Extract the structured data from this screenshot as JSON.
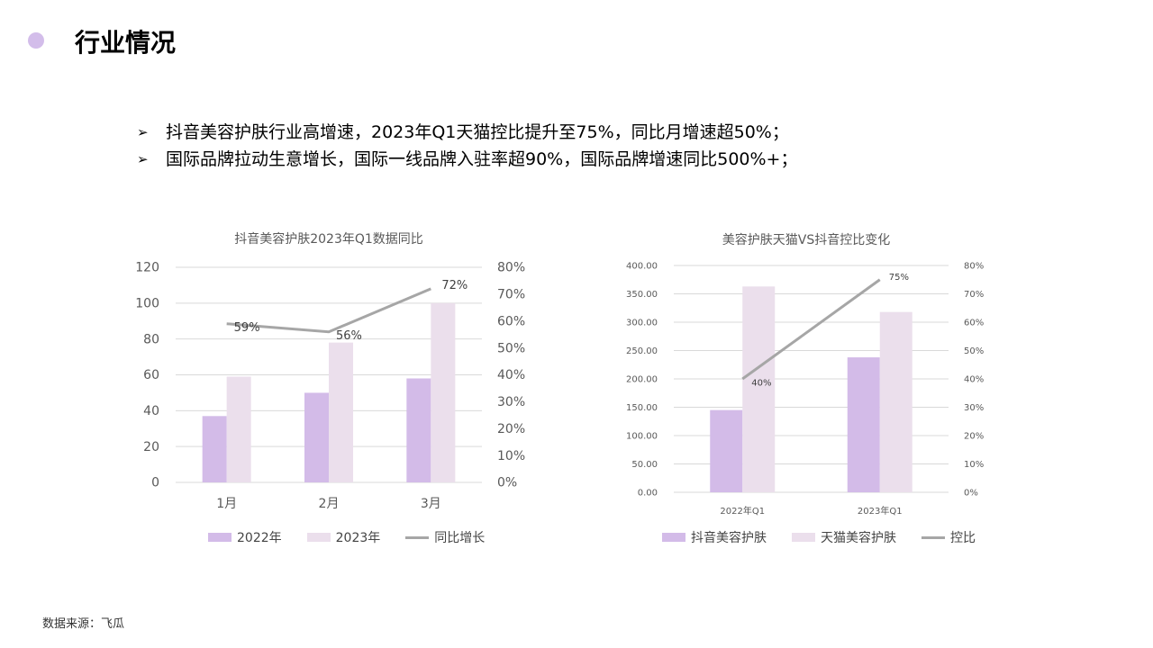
{
  "header": {
    "title": "行业情况"
  },
  "bullets": [
    "抖音美容护肤行业高增速，2023年Q1天猫控比提升至75%，同比月增速超50%；",
    "国际品牌拉动生意增长，国际一线品牌入驻率超90%，国际品牌增速同比500%+；"
  ],
  "bullet_marker": "➢",
  "source": "数据来源：飞瓜",
  "colors": {
    "bar1": "#d3bbe8",
    "bar2": "#ebdfec",
    "line": "#a6a6a6",
    "accent": "#d3bdea"
  },
  "chart_data": [
    {
      "type": "bar",
      "title": "抖音美容护肤2023年Q1数据同比",
      "categories": [
        "1月",
        "2月",
        "3月"
      ],
      "series": [
        {
          "name": "2022年",
          "values": [
            37,
            50,
            58
          ]
        },
        {
          "name": "2023年",
          "values": [
            59,
            78,
            100
          ]
        }
      ],
      "line": {
        "name": "同比增长",
        "values": [
          59,
          56,
          72
        ],
        "labels": [
          "59%",
          "56%",
          "72%"
        ]
      },
      "ylim": [
        0,
        120
      ],
      "yticks": [
        "0",
        "20",
        "40",
        "60",
        "80",
        "100",
        "120"
      ],
      "y2lim": [
        0,
        80
      ],
      "y2ticks": [
        "0%",
        "10%",
        "20%",
        "30%",
        "40%",
        "50%",
        "60%",
        "70%",
        "80%"
      ],
      "grid": true,
      "legend": "bottom"
    },
    {
      "type": "bar",
      "title": "美容护肤天猫VS抖音控比变化",
      "categories": [
        "2022年Q1",
        "2023年Q1"
      ],
      "series": [
        {
          "name": "抖音美容护肤",
          "values": [
            145,
            238
          ]
        },
        {
          "name": "天猫美容护肤",
          "values": [
            363,
            318
          ]
        }
      ],
      "line": {
        "name": "控比",
        "values": [
          40,
          75
        ],
        "labels": [
          "40%",
          "75%"
        ]
      },
      "ylim": [
        0,
        400
      ],
      "yticks": [
        "0.00",
        "50.00",
        "100.00",
        "150.00",
        "200.00",
        "250.00",
        "300.00",
        "350.00",
        "400.00"
      ],
      "y2lim": [
        0,
        80
      ],
      "y2ticks": [
        "0%",
        "10%",
        "20%",
        "30%",
        "40%",
        "50%",
        "60%",
        "70%",
        "80%"
      ],
      "grid": true,
      "legend": "bottom"
    }
  ]
}
